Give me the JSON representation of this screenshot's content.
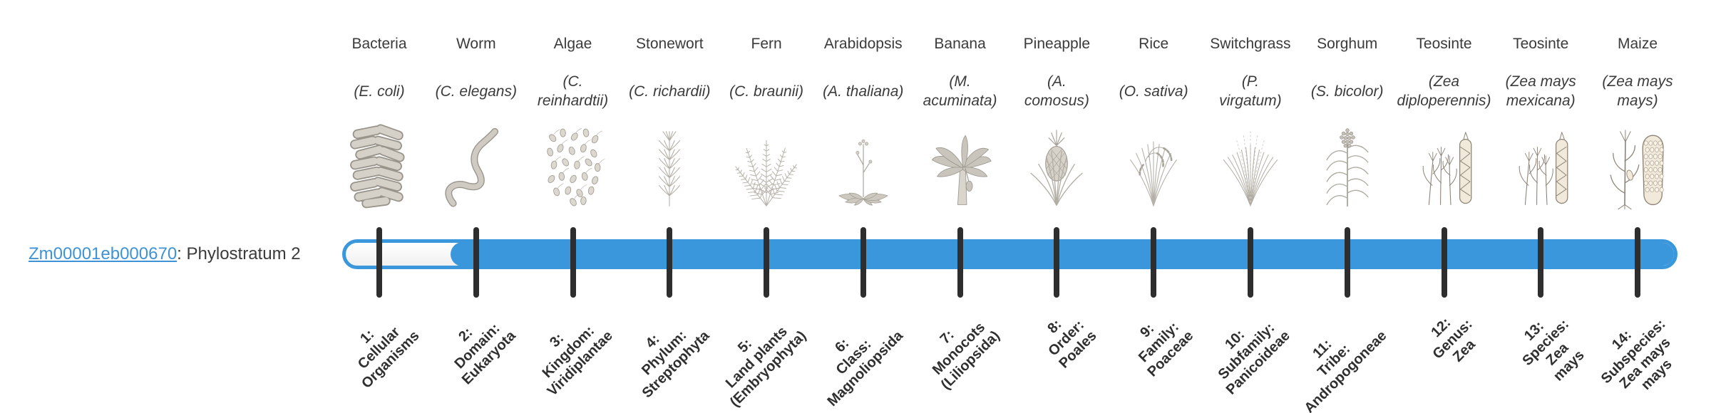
{
  "gene": {
    "id": "Zm00001eb000670",
    "suffix": ": Phylostratum 2",
    "phylostratum": 2
  },
  "colors": {
    "bar_fill": "#3a97db",
    "tick": "#2e2e2e",
    "text": "#3b3b3b",
    "link": "#3e92d6"
  },
  "strata": [
    {
      "num": 1,
      "organism": "Bacteria",
      "species": "(E. coli)",
      "icon": "bacteria-icon",
      "stratum_label": "1:\nCellular\nOrganisms"
    },
    {
      "num": 2,
      "organism": "Worm",
      "species": "(C. elegans)",
      "icon": "worm-icon",
      "stratum_label": "2:\nDomain:\nEukaryota"
    },
    {
      "num": 3,
      "organism": "Algae",
      "species": "(C.\nreinhardtii)",
      "icon": "algae-icon",
      "stratum_label": "3:\nKingdom:\nViridiplantae"
    },
    {
      "num": 4,
      "organism": "Stonewort",
      "species": "(C. richardii)",
      "icon": "stonewort-icon",
      "stratum_label": "4:\nPhylum:\nStreptophyta"
    },
    {
      "num": 5,
      "organism": "Fern",
      "species": "(C. braunii)",
      "icon": "fern-icon",
      "stratum_label": "5:\nLand plants\n(Embryophyta)"
    },
    {
      "num": 6,
      "organism": "Arabidopsis",
      "species": "(A. thaliana)",
      "icon": "arabidopsis-icon",
      "stratum_label": "6:\nClass:\nMagnoliopsida"
    },
    {
      "num": 7,
      "organism": "Banana",
      "species": "(M.\nacuminata)",
      "icon": "banana-icon",
      "stratum_label": "7:\nMonocots\n(Liliopsida)"
    },
    {
      "num": 8,
      "organism": "Pineapple",
      "species": "(A.\ncomosus)",
      "icon": "pineapple-icon",
      "stratum_label": "8:\nOrder:\nPoales"
    },
    {
      "num": 9,
      "organism": "Rice",
      "species": "(O. sativa)",
      "icon": "rice-icon",
      "stratum_label": "9:\nFamily:\nPoaceae"
    },
    {
      "num": 10,
      "organism": "Switchgrass",
      "species": "(P.\nvirgatum)",
      "icon": "switchgrass-icon",
      "stratum_label": "10:\nSubfamily:\nPanicoideae"
    },
    {
      "num": 11,
      "organism": "Sorghum",
      "species": "(S. bicolor)",
      "icon": "sorghum-icon",
      "stratum_label": "11:\nTribe:\nAndropogoneae"
    },
    {
      "num": 12,
      "organism": "Teosinte",
      "species": "(Zea\ndiploperennis)",
      "icon": "teosinte-diploperennis-icon",
      "stratum_label": "12:\nGenus:\nZea"
    },
    {
      "num": 13,
      "organism": "Teosinte",
      "species": "(Zea mays\nmexicana)",
      "icon": "teosinte-mexicana-icon",
      "stratum_label": "13:\nSpecies:\nZea\nmays"
    },
    {
      "num": 14,
      "organism": "Maize",
      "species": "(Zea mays\nmays)",
      "icon": "maize-icon",
      "stratum_label": "14:\nSubspecies:\nZea mays\nmays"
    }
  ]
}
